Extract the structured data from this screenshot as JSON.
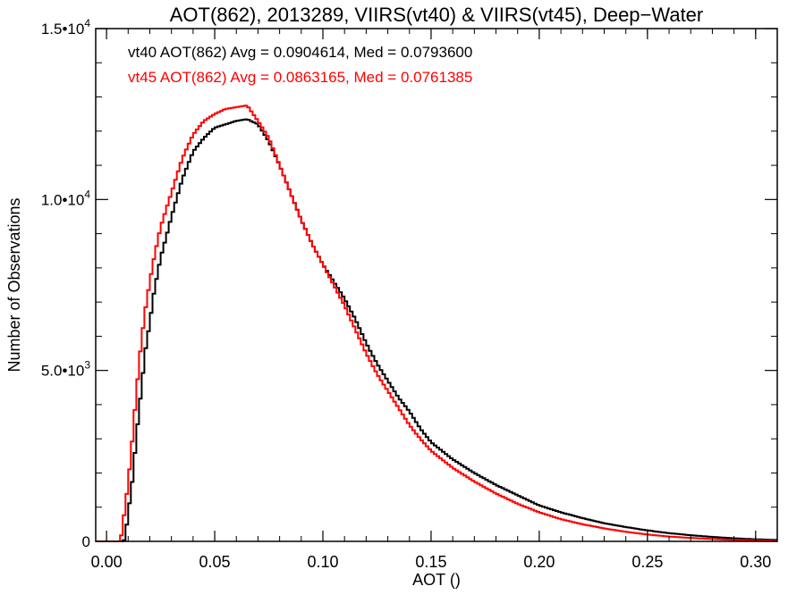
{
  "chart_data": {
    "type": "line",
    "title": "AOT(862), 2013289, VIIRS(vt40) & VIIRS(vt45), Deep−Water",
    "xlabel": "AOT ()",
    "ylabel": "Number of Observations",
    "xlim": [
      -0.005,
      0.31
    ],
    "ylim": [
      0,
      15000
    ],
    "x_ticks": [
      0.0,
      0.05,
      0.1,
      0.15,
      0.2,
      0.25,
      0.3
    ],
    "x_tick_labels": [
      "0.00",
      "0.05",
      "0.10",
      "0.15",
      "0.20",
      "0.25",
      "0.30"
    ],
    "y_ticks": [
      0,
      5000,
      10000,
      15000
    ],
    "y_tick_labels": [
      {
        "base": "0",
        "exp": ""
      },
      {
        "base": "5.0•10",
        "exp": "3"
      },
      {
        "base": "1.0•10",
        "exp": "4"
      },
      {
        "base": "1.5•10",
        "exp": "4"
      }
    ],
    "grid": false,
    "legend_position": "top-left",
    "annotations": [
      {
        "text": "vt40 AOT(862) Avg = 0.0904614, Med = 0.0793600",
        "color": "#000000"
      },
      {
        "text": "vt45 AOT(862) Avg = 0.0863165, Med = 0.0761385",
        "color": "#ff0000"
      }
    ],
    "series": [
      {
        "color": "#000000",
        "style": "step",
        "x": [
          -0.005,
          0.008,
          0.009,
          0.01,
          0.012,
          0.014,
          0.016,
          0.018,
          0.02,
          0.022,
          0.025,
          0.028,
          0.03,
          0.035,
          0.04,
          0.045,
          0.05,
          0.055,
          0.06,
          0.065,
          0.07,
          0.075,
          0.08,
          0.085,
          0.09,
          0.095,
          0.1,
          0.105,
          0.11,
          0.115,
          0.12,
          0.125,
          0.13,
          0.135,
          0.14,
          0.145,
          0.15,
          0.16,
          0.17,
          0.18,
          0.19,
          0.2,
          0.21,
          0.22,
          0.23,
          0.24,
          0.25,
          0.26,
          0.27,
          0.28,
          0.29,
          0.3,
          0.31
        ],
        "y": [
          0,
          0,
          300,
          800,
          1800,
          3200,
          4400,
          5600,
          6400,
          7300,
          8300,
          9000,
          9500,
          10600,
          11400,
          11800,
          12100,
          12200,
          12300,
          12350,
          12200,
          11700,
          11000,
          10200,
          9400,
          8700,
          8100,
          7600,
          7100,
          6500,
          5800,
          5200,
          4700,
          4200,
          3800,
          3300,
          2900,
          2400,
          2000,
          1650,
          1350,
          1050,
          850,
          680,
          530,
          420,
          320,
          240,
          180,
          130,
          90,
          60,
          40
        ]
      },
      {
        "color": "#ff0000",
        "style": "step",
        "x": [
          -0.005,
          0.006,
          0.007,
          0.008,
          0.01,
          0.012,
          0.014,
          0.016,
          0.018,
          0.02,
          0.022,
          0.025,
          0.028,
          0.03,
          0.035,
          0.04,
          0.045,
          0.05,
          0.055,
          0.06,
          0.065,
          0.07,
          0.075,
          0.08,
          0.085,
          0.09,
          0.095,
          0.1,
          0.105,
          0.11,
          0.115,
          0.12,
          0.125,
          0.13,
          0.135,
          0.14,
          0.145,
          0.15,
          0.16,
          0.17,
          0.18,
          0.19,
          0.2,
          0.21,
          0.22,
          0.23,
          0.24,
          0.25,
          0.26,
          0.27,
          0.28,
          0.29,
          0.3,
          0.31
        ],
        "y": [
          0,
          0,
          200,
          700,
          1700,
          3000,
          4500,
          5800,
          6800,
          7600,
          8300,
          9200,
          9800,
          10200,
          11200,
          11900,
          12300,
          12500,
          12650,
          12700,
          12750,
          12300,
          11800,
          11000,
          10200,
          9400,
          8700,
          8100,
          7500,
          6900,
          6200,
          5500,
          4900,
          4400,
          3900,
          3400,
          3000,
          2650,
          2150,
          1750,
          1400,
          1100,
          850,
          650,
          500,
          380,
          280,
          200,
          140,
          100,
          70,
          45,
          30,
          20
        ]
      }
    ]
  }
}
